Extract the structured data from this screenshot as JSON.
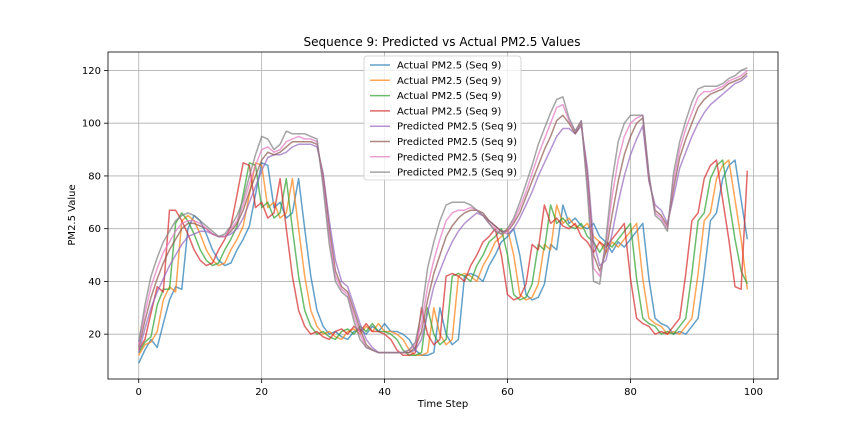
{
  "chart_data": {
    "type": "line",
    "title": "Sequence 9: Predicted vs Actual PM2.5 Values",
    "xlabel": "Time Step",
    "ylabel": "PM2.5 Value",
    "xlim": [
      -5,
      104
    ],
    "ylim": [
      3,
      127
    ],
    "xticks": [
      0,
      20,
      40,
      60,
      80,
      100
    ],
    "yticks": [
      20,
      40,
      60,
      80,
      100,
      120
    ],
    "grid": true,
    "legend_position": "upper center",
    "x": [
      0,
      1,
      2,
      3,
      4,
      5,
      6,
      7,
      8,
      9,
      10,
      11,
      12,
      13,
      14,
      15,
      16,
      17,
      18,
      19,
      20,
      21,
      22,
      23,
      24,
      25,
      26,
      27,
      28,
      29,
      30,
      31,
      32,
      33,
      34,
      35,
      36,
      37,
      38,
      39,
      40,
      41,
      42,
      43,
      44,
      45,
      46,
      47,
      48,
      49,
      50,
      51,
      52,
      53,
      54,
      55,
      56,
      57,
      58,
      59,
      60,
      61,
      62,
      63,
      64,
      65,
      66,
      67,
      68,
      69,
      70,
      71,
      72,
      73,
      74,
      75,
      76,
      77,
      78,
      79,
      80,
      81,
      82,
      83,
      84,
      85,
      86,
      87,
      88,
      89,
      90,
      91,
      92,
      93,
      94,
      95,
      96,
      97,
      98,
      99
    ],
    "series": [
      {
        "name": "Actual PM2.5 (Seq 9)",
        "color": "#1f77b4",
        "opacity": 0.7,
        "values": [
          9,
          14,
          18,
          15,
          24,
          33,
          38,
          37,
          60,
          65,
          63,
          58,
          52,
          48,
          46,
          47,
          52,
          56,
          61,
          73,
          85,
          84,
          68,
          70,
          64,
          66,
          79,
          60,
          42,
          29,
          23,
          20,
          21,
          19,
          18,
          21,
          22,
          20,
          23,
          21,
          24,
          21,
          21,
          20,
          18,
          14,
          12,
          12,
          13,
          30,
          20,
          16,
          18,
          42,
          43,
          42,
          40,
          46,
          50,
          55,
          57,
          60,
          50,
          35,
          33,
          34,
          39,
          54,
          52,
          69,
          62,
          64,
          61,
          60,
          62,
          57,
          55,
          51,
          55,
          53,
          56,
          59,
          62,
          41,
          26,
          24,
          23,
          20,
          21,
          20,
          23,
          26,
          43,
          63,
          66,
          79,
          84,
          86,
          71,
          56
        ]
      },
      {
        "name": "Actual PM2.5 (Seq 9)",
        "color": "#ff7f0e",
        "opacity": 0.7,
        "values": [
          12,
          16,
          17,
          21,
          33,
          38,
          36,
          63,
          65,
          63,
          58,
          52,
          48,
          46,
          47,
          52,
          56,
          61,
          73,
          85,
          84,
          68,
          70,
          64,
          66,
          79,
          60,
          42,
          29,
          23,
          20,
          21,
          19,
          18,
          21,
          22,
          20,
          23,
          21,
          24,
          21,
          21,
          20,
          18,
          14,
          12,
          12,
          13,
          30,
          20,
          16,
          18,
          42,
          43,
          42,
          40,
          46,
          50,
          55,
          57,
          60,
          50,
          35,
          33,
          34,
          39,
          54,
          52,
          69,
          62,
          64,
          61,
          60,
          62,
          57,
          55,
          51,
          55,
          53,
          56,
          59,
          62,
          41,
          26,
          24,
          23,
          20,
          21,
          20,
          23,
          26,
          43,
          63,
          66,
          79,
          84,
          86,
          71,
          56,
          37
        ]
      },
      {
        "name": "Actual PM2.5 (Seq 9)",
        "color": "#2ca02c",
        "opacity": 0.7,
        "values": [
          13,
          17,
          19,
          31,
          37,
          37,
          62,
          66,
          63,
          58,
          52,
          48,
          46,
          47,
          52,
          56,
          61,
          73,
          85,
          84,
          68,
          70,
          64,
          66,
          79,
          60,
          42,
          29,
          23,
          20,
          21,
          19,
          18,
          21,
          22,
          20,
          23,
          21,
          24,
          21,
          21,
          20,
          18,
          14,
          12,
          12,
          13,
          30,
          20,
          16,
          18,
          42,
          43,
          42,
          40,
          46,
          50,
          55,
          57,
          60,
          50,
          35,
          33,
          34,
          39,
          54,
          52,
          69,
          62,
          64,
          61,
          60,
          62,
          57,
          55,
          51,
          55,
          53,
          56,
          59,
          62,
          41,
          26,
          24,
          23,
          20,
          21,
          20,
          23,
          26,
          43,
          63,
          66,
          79,
          84,
          86,
          71,
          56,
          44,
          39
        ]
      },
      {
        "name": "Actual PM2.5 (Seq 9)",
        "color": "#d62728",
        "opacity": 0.7,
        "values": [
          14,
          18,
          28,
          38,
          36,
          67,
          67,
          63,
          58,
          52,
          48,
          46,
          47,
          52,
          56,
          61,
          73,
          85,
          84,
          68,
          70,
          64,
          66,
          79,
          60,
          42,
          29,
          23,
          20,
          21,
          19,
          18,
          21,
          22,
          20,
          23,
          21,
          24,
          21,
          21,
          20,
          18,
          14,
          12,
          12,
          13,
          30,
          20,
          16,
          18,
          42,
          43,
          42,
          40,
          46,
          50,
          55,
          57,
          60,
          50,
          35,
          33,
          34,
          39,
          54,
          52,
          69,
          62,
          64,
          61,
          60,
          62,
          57,
          55,
          51,
          55,
          53,
          56,
          59,
          62,
          41,
          26,
          24,
          23,
          20,
          21,
          20,
          23,
          26,
          43,
          63,
          66,
          79,
          84,
          86,
          71,
          56,
          38,
          37,
          82
        ]
      },
      {
        "name": "Predicted PM2.5 (Seq 9)",
        "color": "#9467bd",
        "opacity": 0.7,
        "values": [
          13,
          22,
          30,
          36,
          41,
          46,
          50,
          54,
          57,
          58,
          59,
          59,
          58,
          57,
          57,
          58,
          60,
          64,
          70,
          76,
          82,
          87,
          88,
          88,
          89,
          91,
          92,
          92,
          92,
          91,
          81,
          63,
          48,
          40,
          38,
          31,
          24,
          18,
          15,
          13,
          13,
          13,
          13,
          13,
          13,
          14,
          18,
          28,
          38,
          44,
          50,
          55,
          59,
          62,
          64,
          66,
          65,
          63,
          61,
          59,
          58,
          60,
          64,
          69,
          74,
          80,
          85,
          90,
          95,
          98,
          98,
          96,
          99,
          83,
          55,
          46,
          48,
          58,
          70,
          80,
          88,
          94,
          99,
          78,
          69,
          67,
          62,
          72,
          83,
          89,
          95,
          100,
          104,
          107,
          109,
          111,
          113,
          115,
          116,
          118
        ]
      },
      {
        "name": "Predicted PM2.5 (Seq 9)",
        "color": "#8c564b",
        "opacity": 0.7,
        "values": [
          15,
          25,
          34,
          41,
          47,
          52,
          56,
          60,
          62,
          62,
          61,
          60,
          58,
          57,
          57,
          59,
          62,
          67,
          74,
          80,
          86,
          89,
          88,
          89,
          91,
          93,
          93,
          93,
          93,
          92,
          80,
          60,
          44,
          38,
          36,
          29,
          22,
          16,
          14,
          13,
          13,
          13,
          13,
          13,
          13,
          15,
          21,
          33,
          43,
          50,
          57,
          61,
          64,
          66,
          67,
          67,
          66,
          63,
          61,
          59,
          59,
          62,
          66,
          72,
          78,
          84,
          90,
          95,
          101,
          103,
          100,
          96,
          100,
          80,
          50,
          44,
          51,
          65,
          78,
          88,
          95,
          100,
          102,
          79,
          67,
          65,
          61,
          75,
          87,
          94,
          100,
          106,
          109,
          111,
          112,
          113,
          115,
          116,
          117,
          119
        ]
      },
      {
        "name": "Predicted PM2.5 (Seq 9)",
        "color": "#e377c2",
        "opacity": 0.7,
        "values": [
          16,
          28,
          38,
          45,
          51,
          55,
          59,
          62,
          63,
          63,
          62,
          60,
          58,
          57,
          57,
          60,
          63,
          69,
          77,
          84,
          90,
          91,
          89,
          90,
          93,
          94,
          95,
          94,
          94,
          93,
          78,
          57,
          42,
          37,
          35,
          27,
          20,
          15,
          14,
          13,
          13,
          13,
          13,
          13,
          14,
          16,
          24,
          38,
          48,
          56,
          63,
          66,
          67,
          67,
          68,
          67,
          65,
          62,
          60,
          58,
          59,
          63,
          68,
          74,
          81,
          88,
          94,
          100,
          106,
          107,
          101,
          97,
          101,
          77,
          45,
          42,
          54,
          72,
          86,
          95,
          100,
          102,
          103,
          80,
          66,
          64,
          60,
          78,
          90,
          98,
          104,
          110,
          112,
          112,
          113,
          114,
          116,
          117,
          118,
          120
        ]
      },
      {
        "name": "Predicted PM2.5 (Seq 9)",
        "color": "#7f7f7f",
        "opacity": 0.7,
        "values": [
          17,
          31,
          42,
          49,
          55,
          59,
          63,
          65,
          66,
          65,
          63,
          61,
          59,
          57,
          58,
          61,
          65,
          71,
          80,
          88,
          95,
          94,
          90,
          92,
          97,
          96,
          96,
          96,
          95,
          94,
          76,
          54,
          40,
          36,
          34,
          25,
          18,
          15,
          14,
          13,
          13,
          13,
          13,
          13,
          14,
          17,
          28,
          45,
          55,
          63,
          69,
          70,
          70,
          70,
          69,
          67,
          65,
          62,
          59,
          58,
          60,
          64,
          70,
          77,
          84,
          92,
          98,
          104,
          109,
          110,
          102,
          97,
          101,
          74,
          40,
          39,
          56,
          78,
          93,
          100,
          103,
          103,
          103,
          81,
          65,
          63,
          59,
          81,
          93,
          101,
          108,
          113,
          114,
          114,
          114,
          115,
          117,
          118,
          120,
          121
        ]
      }
    ]
  }
}
